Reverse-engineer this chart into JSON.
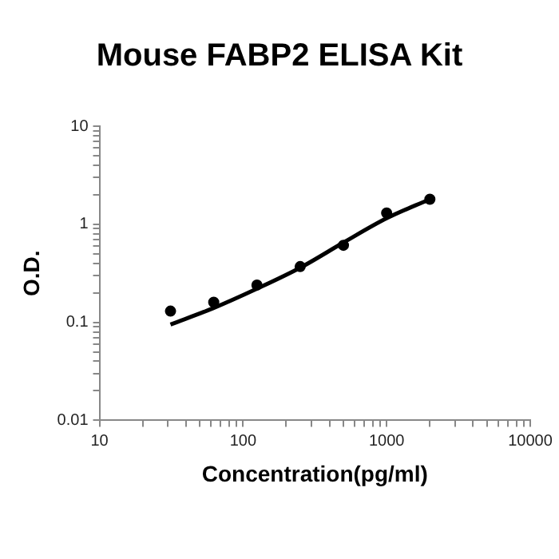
{
  "chart_data": {
    "type": "scatter",
    "title": "Mouse FABP2 ELISA Kit",
    "xlabel": "Concentration(pg/ml)",
    "ylabel": "O.D.",
    "log": "xy",
    "grid": false,
    "legend": false,
    "xlim": [
      10,
      10000
    ],
    "ylim": [
      0.01,
      10
    ],
    "xticks": [
      10,
      {
        "value": 20,
        "label": null
      },
      {
        "value": 30,
        "label": null
      },
      {
        "value": 40,
        "label": null
      },
      {
        "value": 50,
        "label": null
      },
      {
        "value": 60,
        "label": null
      },
      {
        "value": 70,
        "label": null
      },
      {
        "value": 80,
        "label": null
      },
      {
        "value": 90,
        "label": null
      },
      100,
      {
        "value": 200,
        "label": null
      },
      {
        "value": 300,
        "label": null
      },
      {
        "value": 400,
        "label": null
      },
      {
        "value": 500,
        "label": null
      },
      {
        "value": 600,
        "label": null
      },
      {
        "value": 700,
        "label": null
      },
      {
        "value": 800,
        "label": null
      },
      {
        "value": 900,
        "label": null
      },
      1000,
      {
        "value": 2000,
        "label": null
      },
      {
        "value": 3000,
        "label": null
      },
      {
        "value": 4000,
        "label": null
      },
      {
        "value": 5000,
        "label": null
      },
      {
        "value": 6000,
        "label": null
      },
      {
        "value": 7000,
        "label": null
      },
      {
        "value": 8000,
        "label": null
      },
      {
        "value": 9000,
        "label": null
      },
      10000
    ],
    "yticks": [
      0.01,
      {
        "value": 0.02,
        "label": null
      },
      {
        "value": 0.03,
        "label": null
      },
      {
        "value": 0.04,
        "label": null
      },
      {
        "value": 0.05,
        "label": null
      },
      {
        "value": 0.06,
        "label": null
      },
      {
        "value": 0.07,
        "label": null
      },
      {
        "value": 0.08,
        "label": null
      },
      {
        "value": 0.09,
        "label": null
      },
      0.1,
      {
        "value": 0.2,
        "label": null
      },
      {
        "value": 0.3,
        "label": null
      },
      {
        "value": 0.4,
        "label": null
      },
      {
        "value": 0.5,
        "label": null
      },
      {
        "value": 0.6,
        "label": null
      },
      {
        "value": 0.7,
        "label": null
      },
      {
        "value": 0.8,
        "label": null
      },
      {
        "value": 0.9,
        "label": null
      },
      1,
      {
        "value": 2,
        "label": null
      },
      {
        "value": 3,
        "label": null
      },
      {
        "value": 4,
        "label": null
      },
      {
        "value": 5,
        "label": null
      },
      {
        "value": 6,
        "label": null
      },
      {
        "value": 7,
        "label": null
      },
      {
        "value": 8,
        "label": null
      },
      {
        "value": 9,
        "label": null
      },
      10
    ],
    "series": [
      {
        "type": "scatter",
        "color": "#000000",
        "marker": "circle",
        "x": [
          31.25,
          62.5,
          125,
          250,
          500,
          1000,
          2000
        ],
        "values": [
          0.13,
          0.16,
          0.24,
          0.37,
          0.61,
          1.3,
          1.8
        ]
      },
      {
        "type": "line",
        "color": "#000000",
        "marker": "none",
        "line_style": "solid",
        "x": [
          31.25,
          62.5,
          125,
          250,
          500,
          1000,
          2000
        ],
        "values": [
          0.095,
          0.14,
          0.22,
          0.36,
          0.65,
          1.15,
          1.8
        ]
      }
    ]
  }
}
